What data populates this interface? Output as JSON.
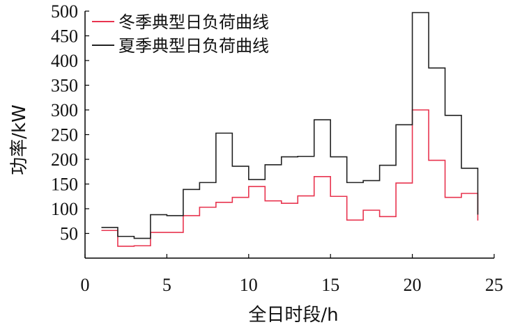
{
  "chart_data": {
    "type": "line",
    "step": true,
    "xlabel": "全日时段/h",
    "ylabel": "功率/kW",
    "xlim": [
      0,
      25
    ],
    "ylim": [
      0,
      500
    ],
    "xticks": [
      0,
      5,
      10,
      15,
      20,
      25
    ],
    "yticks": [
      50,
      100,
      150,
      200,
      250,
      300,
      350,
      400,
      450,
      500
    ],
    "grid": false,
    "legend_position": "top-left",
    "series": [
      {
        "name": "冬季典型日负荷曲线",
        "color": "#e8344f",
        "x": [
          1,
          2,
          3,
          4,
          5,
          6,
          7,
          8,
          9,
          10,
          11,
          12,
          13,
          14,
          15,
          16,
          17,
          18,
          19,
          20,
          21,
          22,
          23,
          24
        ],
        "values": [
          56,
          24,
          25,
          52,
          52,
          86,
          103,
          113,
          123,
          145,
          116,
          111,
          126,
          165,
          125,
          77,
          97,
          84,
          152,
          300,
          198,
          123,
          131,
          76
        ]
      },
      {
        "name": "夏季典型日负荷曲线",
        "color": "#222222",
        "x": [
          1,
          2,
          3,
          4,
          5,
          6,
          7,
          8,
          9,
          10,
          11,
          12,
          13,
          14,
          15,
          16,
          17,
          18,
          19,
          20,
          21,
          22,
          23,
          24
        ],
        "values": [
          62,
          44,
          40,
          88,
          86,
          139,
          153,
          253,
          186,
          159,
          189,
          205,
          206,
          280,
          205,
          153,
          157,
          188,
          270,
          497,
          385,
          289,
          182,
          88
        ]
      }
    ]
  }
}
